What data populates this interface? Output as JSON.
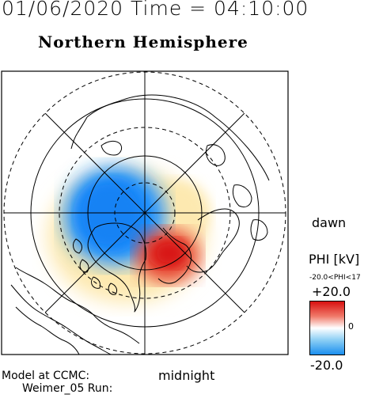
{
  "header": {
    "datetime": "01/06/2020 Time = 04:10:00",
    "hemisphere": "Northern Hemisphere"
  },
  "map": {
    "projection": "polar stereographic, north pole centered",
    "grid": "concentric latitude circles and meridian lines",
    "labels": {
      "dawn": "dawn",
      "midnight": "midnight"
    },
    "potential_cells": [
      {
        "name": "negative-cell",
        "color": "#1e90ff",
        "sign": "negative"
      },
      {
        "name": "positive-cell",
        "color": "#e02020",
        "sign": "positive"
      }
    ]
  },
  "colorbar": {
    "title": "PHI [kV]",
    "range_text": "-20.0<PHI<17",
    "max_label": "+20.0",
    "mid_label": "0",
    "min_label": "-20.0",
    "colors": {
      "max": "#d81010",
      "mid": "#ffffff",
      "min": "#1b8fef"
    }
  },
  "footer": {
    "model_line1": "Model at CCMC:",
    "model_line2": "Weimer_05 Run:"
  }
}
